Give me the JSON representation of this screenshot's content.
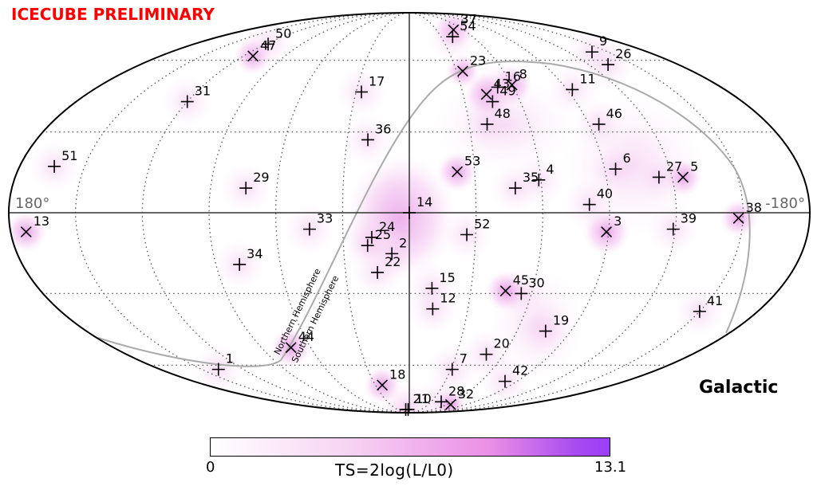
{
  "header": {
    "preliminary_label": "ICECUBE PRELIMINARY"
  },
  "map": {
    "coordinate_label": "Galactic"
  },
  "colorbar": {
    "min_label": "0",
    "max_label": "13.1",
    "label": "TS=2log(L/L0)"
  },
  "chart_data": {
    "type": "scatter",
    "projection": "mollweide",
    "coordinate_system": "galactic",
    "x_axis": {
      "range_deg": [
        180,
        -180
      ],
      "labels": [
        "180°",
        "-180°"
      ]
    },
    "grid": true,
    "colorscale": {
      "min": 0,
      "max": 13.1,
      "label": "TS=2log(L/L0)"
    },
    "curves": [
      {
        "labels": [
          "Northern Hemisphere",
          "Southern Hemisphere"
        ]
      }
    ],
    "marker_types": [
      "shower",
      "track"
    ],
    "events": [
      {
        "id": "1",
        "l": 138,
        "b": -62,
        "type": "shower"
      },
      {
        "id": "2",
        "l": 8,
        "b": -15,
        "type": "shower"
      },
      {
        "id": "3",
        "l": -89,
        "b": -7,
        "type": "track"
      },
      {
        "id": "4",
        "l": -59,
        "b": 12,
        "type": "shower"
      },
      {
        "id": "5",
        "l": -125,
        "b": 13,
        "type": "track"
      },
      {
        "id": "6",
        "l": -95,
        "b": 16,
        "type": "shower"
      },
      {
        "id": "7",
        "l": -31,
        "b": -62,
        "type": "shower"
      },
      {
        "id": "8",
        "l": -60,
        "b": 49,
        "type": "track"
      },
      {
        "id": "9",
        "l": -138,
        "b": 64,
        "type": "shower"
      },
      {
        "id": "10",
        "l": 3,
        "b": -86,
        "type": "shower"
      },
      {
        "id": "11",
        "l": -93,
        "b": 47,
        "type": "shower"
      },
      {
        "id": "12",
        "l": -12,
        "b": -36,
        "type": "shower"
      },
      {
        "id": "13",
        "l": 173,
        "b": -7,
        "type": "track"
      },
      {
        "id": "14",
        "l": 0,
        "b": 0,
        "type": "shower"
      },
      {
        "id": "15",
        "l": -11,
        "b": -28,
        "type": "shower"
      },
      {
        "id": "16",
        "l": -51,
        "b": 48,
        "type": "shower"
      },
      {
        "id": "17",
        "l": 27,
        "b": 46,
        "type": "shower"
      },
      {
        "id": "18",
        "l": 24,
        "b": -70,
        "type": "track"
      },
      {
        "id": "19",
        "l": -76,
        "b": -45,
        "type": "shower"
      },
      {
        "id": "20",
        "l": -49,
        "b": -55,
        "type": "shower"
      },
      {
        "id": "21",
        "l": 9,
        "b": -86,
        "type": "shower"
      },
      {
        "id": "22",
        "l": 15,
        "b": -22,
        "type": "shower"
      },
      {
        "id": "23",
        "l": -34,
        "b": 55,
        "type": "track"
      },
      {
        "id": "24",
        "l": 17,
        "b": -9,
        "type": "shower"
      },
      {
        "id": "25",
        "l": 19,
        "b": -12,
        "type": "shower"
      },
      {
        "id": "26",
        "l": -133,
        "b": 58,
        "type": "shower"
      },
      {
        "id": "27",
        "l": -114,
        "b": 13,
        "type": "shower"
      },
      {
        "id": "28",
        "l": -44,
        "b": -80,
        "type": "shower"
      },
      {
        "id": "29",
        "l": 74,
        "b": 9,
        "type": "shower"
      },
      {
        "id": "30",
        "l": -55,
        "b": -30,
        "type": "shower"
      },
      {
        "id": "31",
        "l": 120,
        "b": 42,
        "type": "shower"
      },
      {
        "id": "32",
        "l": -66,
        "b": -82,
        "type": "track"
      },
      {
        "id": "33",
        "l": 45,
        "b": -6,
        "type": "shower"
      },
      {
        "id": "34",
        "l": 79,
        "b": -19,
        "type": "shower"
      },
      {
        "id": "35",
        "l": -48,
        "b": 9,
        "type": "shower"
      },
      {
        "id": "36",
        "l": 20,
        "b": 27,
        "type": "shower"
      },
      {
        "id": "37",
        "l": -49,
        "b": 76,
        "type": "track"
      },
      {
        "id": "38",
        "l": -148,
        "b": -2,
        "type": "track"
      },
      {
        "id": "39",
        "l": -119,
        "b": -6,
        "type": "shower"
      },
      {
        "id": "40",
        "l": -81,
        "b": 3,
        "type": "shower"
      },
      {
        "id": "41",
        "l": -150,
        "b": -37,
        "type": "shower"
      },
      {
        "id": "42",
        "l": -80,
        "b": -68,
        "type": "shower"
      },
      {
        "id": "43",
        "l": -43,
        "b": 45,
        "type": "track"
      },
      {
        "id": "44",
        "l": 72,
        "b": -52,
        "type": "track"
      },
      {
        "id": "45",
        "l": -47,
        "b": -29,
        "type": "track"
      },
      {
        "id": "46",
        "l": -95,
        "b": 33,
        "type": "shower"
      },
      {
        "id": "47",
        "l": 113,
        "b": 62,
        "type": "track"
      },
      {
        "id": "48",
        "l": -39,
        "b": 33,
        "type": "shower"
      },
      {
        "id": "49",
        "l": -45,
        "b": 42,
        "type": "shower"
      },
      {
        "id": "50",
        "l": 118,
        "b": 68,
        "type": "shower"
      },
      {
        "id": "51",
        "l": 164,
        "b": 17,
        "type": "shower"
      },
      {
        "id": "52",
        "l": -26,
        "b": -8,
        "type": "shower"
      },
      {
        "id": "53",
        "l": -22,
        "b": 15,
        "type": "track"
      },
      {
        "id": "54",
        "l": -41,
        "b": 72,
        "type": "shower"
      }
    ]
  }
}
